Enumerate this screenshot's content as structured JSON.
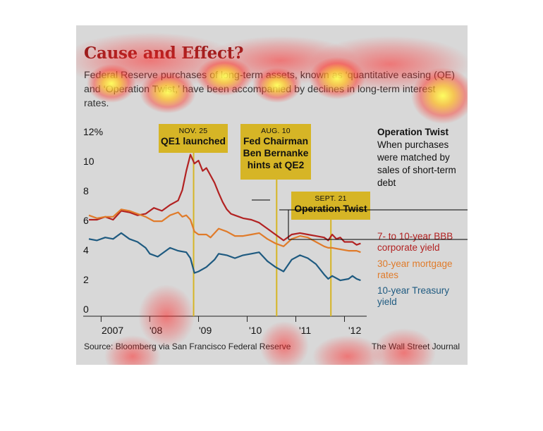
{
  "header": {
    "title": "Cause and Effect?",
    "subtitle": "Federal Reserve purchases of long-term assets, known as ‘quantitative easing (QE) and ‘Operation Twist,’ have been accompanied by declines in long-term interest rates."
  },
  "callouts": {
    "qe1": {
      "date": "NOV. 25",
      "title": "QE1 launched"
    },
    "qe2": {
      "date": "AUG. 10",
      "title": "Fed Chairman Ben Bernanke hints at QE2"
    },
    "twist": {
      "date": "SEPT. 21",
      "title": "Operation Twist"
    }
  },
  "twist_note": {
    "heading": "Operation Twist",
    "body": "When purchases were matched by sales of short-term debt"
  },
  "footer": {
    "source": "Source: Bloomberg via San Francisco Federal Reserve",
    "credit": "The Wall Street Journal"
  },
  "colors": {
    "corporate": "#b22222",
    "mortgage": "#e07b2a",
    "treasury": "#1e5a80",
    "event_line": "#d6b526",
    "title": "#8e1b1b"
  },
  "chart_data": {
    "type": "line",
    "title": "Cause and Effect?",
    "xlabel": "",
    "ylabel": "",
    "ylim": [
      0,
      12
    ],
    "yticks": [
      "12%",
      "10",
      "8",
      "6",
      "4",
      "2",
      "0"
    ],
    "xticks": [
      "2007",
      "'08",
      "'09",
      "'10",
      "'11",
      "'12"
    ],
    "grid": false,
    "events": [
      {
        "date": "2008-11-25",
        "label": "QE1 launched"
      },
      {
        "date": "2010-08-10",
        "label": "Fed Chairman Ben Bernanke hints at QE2"
      },
      {
        "date": "2011-09-21",
        "label": "Operation Twist"
      }
    ],
    "series": [
      {
        "name": "7- to 10-year BBB corporate yield",
        "color": "#b22222",
        "points": [
          [
            "2006-10",
            6.0
          ],
          [
            "2006-12",
            6.0
          ],
          [
            "2007-02",
            6.2
          ],
          [
            "2007-04",
            6.0
          ],
          [
            "2007-06",
            6.6
          ],
          [
            "2007-08",
            6.5
          ],
          [
            "2007-10",
            6.3
          ],
          [
            "2007-12",
            6.4
          ],
          [
            "2008-02",
            6.8
          ],
          [
            "2008-04",
            6.6
          ],
          [
            "2008-06",
            7.0
          ],
          [
            "2008-08",
            7.3
          ],
          [
            "2008-09",
            8.0
          ],
          [
            "2008-10",
            9.3
          ],
          [
            "2008-11",
            10.4
          ],
          [
            "2008-12",
            9.8
          ],
          [
            "2009-01",
            10.0
          ],
          [
            "2009-02",
            9.3
          ],
          [
            "2009-03",
            9.5
          ],
          [
            "2009-04",
            9.0
          ],
          [
            "2009-05",
            8.5
          ],
          [
            "2009-06",
            7.8
          ],
          [
            "2009-07",
            7.2
          ],
          [
            "2009-08",
            6.7
          ],
          [
            "2009-09",
            6.4
          ],
          [
            "2009-10",
            6.3
          ],
          [
            "2009-11",
            6.2
          ],
          [
            "2009-12",
            6.1
          ],
          [
            "2010-02",
            6.0
          ],
          [
            "2010-04",
            5.8
          ],
          [
            "2010-05",
            5.6
          ],
          [
            "2010-06",
            5.4
          ],
          [
            "2010-08",
            5.0
          ],
          [
            "2010-10",
            4.6
          ],
          [
            "2010-12",
            5.0
          ],
          [
            "2011-02",
            5.1
          ],
          [
            "2011-04",
            5.0
          ],
          [
            "2011-06",
            4.9
          ],
          [
            "2011-08",
            4.8
          ],
          [
            "2011-09",
            4.6
          ],
          [
            "2011-10",
            5.0
          ],
          [
            "2011-11",
            4.7
          ],
          [
            "2011-12",
            4.8
          ],
          [
            "2012-01",
            4.5
          ],
          [
            "2012-03",
            4.5
          ],
          [
            "2012-04",
            4.3
          ],
          [
            "2012-05",
            4.4
          ]
        ]
      },
      {
        "name": "30-year mortgage rates",
        "color": "#e07b2a",
        "points": [
          [
            "2006-10",
            6.3
          ],
          [
            "2006-12",
            6.1
          ],
          [
            "2007-02",
            6.2
          ],
          [
            "2007-04",
            6.2
          ],
          [
            "2007-06",
            6.7
          ],
          [
            "2007-08",
            6.6
          ],
          [
            "2007-10",
            6.4
          ],
          [
            "2007-12",
            6.2
          ],
          [
            "2008-02",
            5.9
          ],
          [
            "2008-04",
            5.9
          ],
          [
            "2008-06",
            6.3
          ],
          [
            "2008-08",
            6.5
          ],
          [
            "2008-09",
            6.2
          ],
          [
            "2008-10",
            6.3
          ],
          [
            "2008-11",
            6.0
          ],
          [
            "2008-12",
            5.2
          ],
          [
            "2009-01",
            5.0
          ],
          [
            "2009-03",
            5.0
          ],
          [
            "2009-04",
            4.8
          ],
          [
            "2009-06",
            5.4
          ],
          [
            "2009-08",
            5.2
          ],
          [
            "2009-10",
            4.9
          ],
          [
            "2009-12",
            4.9
          ],
          [
            "2010-02",
            5.0
          ],
          [
            "2010-04",
            5.1
          ],
          [
            "2010-06",
            4.7
          ],
          [
            "2010-08",
            4.4
          ],
          [
            "2010-10",
            4.2
          ],
          [
            "2010-12",
            4.7
          ],
          [
            "2011-02",
            4.9
          ],
          [
            "2011-04",
            4.8
          ],
          [
            "2011-06",
            4.5
          ],
          [
            "2011-08",
            4.2
          ],
          [
            "2011-09",
            4.1
          ],
          [
            "2011-10",
            4.1
          ],
          [
            "2011-12",
            4.0
          ],
          [
            "2012-02",
            3.9
          ],
          [
            "2012-04",
            3.9
          ],
          [
            "2012-05",
            3.8
          ]
        ]
      },
      {
        "name": "10-year Treasury yield",
        "color": "#1e5a80",
        "points": [
          [
            "2006-10",
            4.7
          ],
          [
            "2006-12",
            4.6
          ],
          [
            "2007-02",
            4.8
          ],
          [
            "2007-04",
            4.7
          ],
          [
            "2007-06",
            5.1
          ],
          [
            "2007-08",
            4.7
          ],
          [
            "2007-10",
            4.5
          ],
          [
            "2007-12",
            4.1
          ],
          [
            "2008-01",
            3.7
          ],
          [
            "2008-03",
            3.5
          ],
          [
            "2008-05",
            3.9
          ],
          [
            "2008-06",
            4.1
          ],
          [
            "2008-08",
            3.9
          ],
          [
            "2008-10",
            3.8
          ],
          [
            "2008-11",
            3.4
          ],
          [
            "2008-12",
            2.4
          ],
          [
            "2009-01",
            2.5
          ],
          [
            "2009-03",
            2.8
          ],
          [
            "2009-05",
            3.3
          ],
          [
            "2009-06",
            3.7
          ],
          [
            "2009-08",
            3.6
          ],
          [
            "2009-10",
            3.4
          ],
          [
            "2009-12",
            3.6
          ],
          [
            "2010-02",
            3.7
          ],
          [
            "2010-04",
            3.8
          ],
          [
            "2010-06",
            3.2
          ],
          [
            "2010-08",
            2.8
          ],
          [
            "2010-10",
            2.5
          ],
          [
            "2010-12",
            3.3
          ],
          [
            "2011-02",
            3.6
          ],
          [
            "2011-04",
            3.4
          ],
          [
            "2011-06",
            3.0
          ],
          [
            "2011-08",
            2.3
          ],
          [
            "2011-09",
            2.0
          ],
          [
            "2011-10",
            2.2
          ],
          [
            "2011-12",
            1.9
          ],
          [
            "2012-02",
            2.0
          ],
          [
            "2012-03",
            2.2
          ],
          [
            "2012-04",
            2.0
          ],
          [
            "2012-05",
            1.9
          ]
        ]
      }
    ]
  }
}
